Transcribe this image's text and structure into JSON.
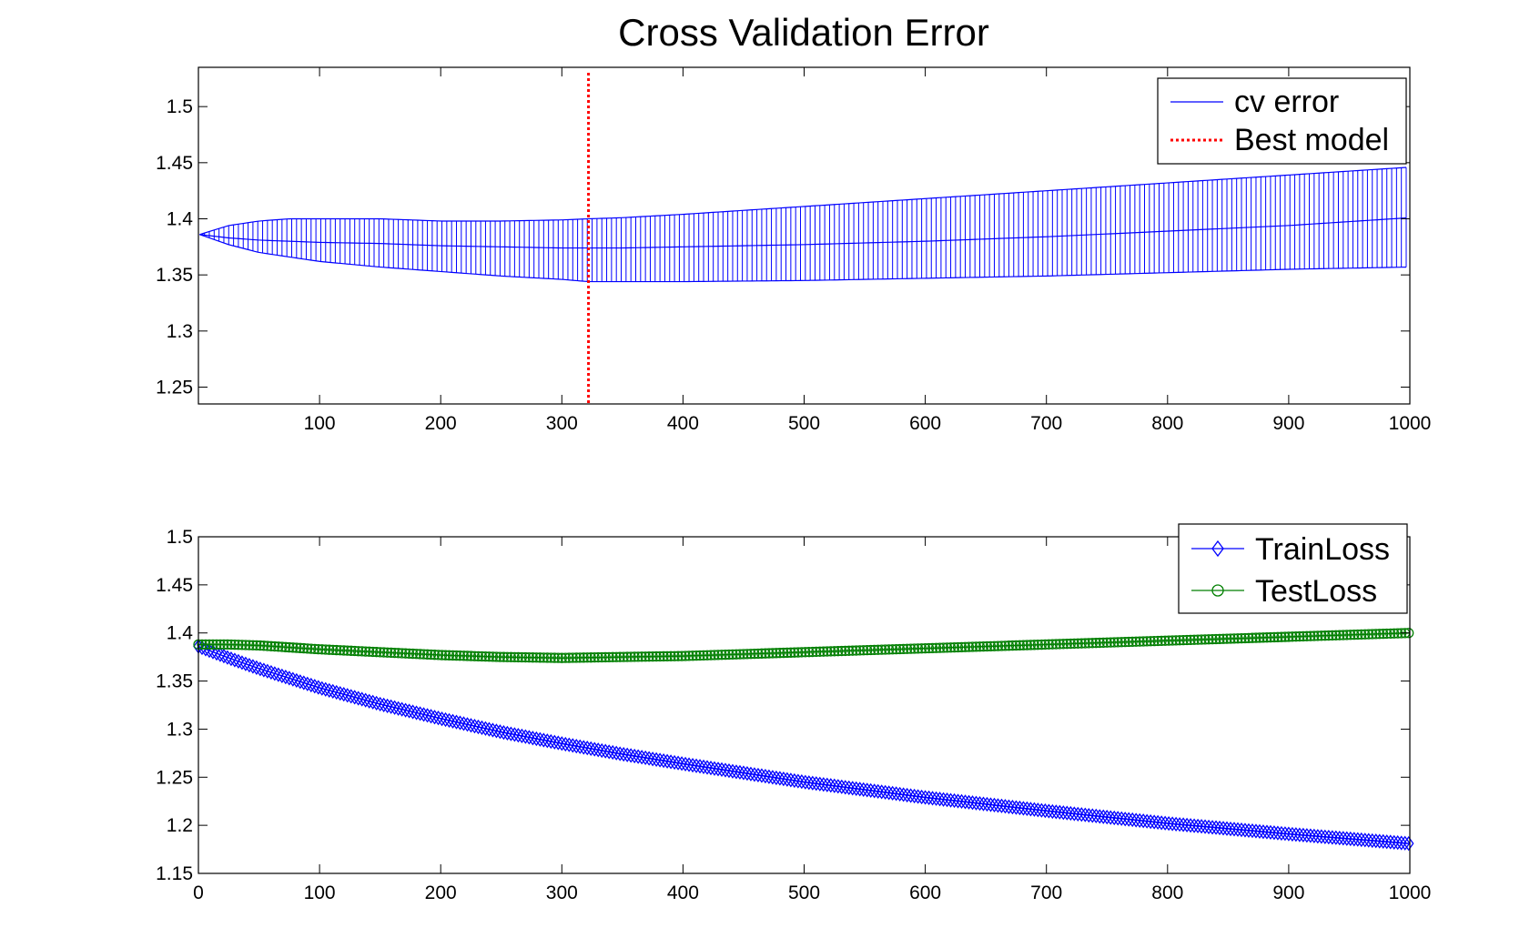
{
  "figure": {
    "title": "Cross Validation Error"
  },
  "chart_data": [
    {
      "type": "line",
      "title": "Cross Validation Error",
      "xlabel": "",
      "ylabel": "",
      "xlim": [
        0,
        1000
      ],
      "ylim": [
        1.235,
        1.535
      ],
      "xticks": [
        100,
        200,
        300,
        400,
        500,
        600,
        700,
        800,
        900,
        1000
      ],
      "yticks": [
        1.25,
        1.3,
        1.35,
        1.4,
        1.45,
        1.5
      ],
      "grid": false,
      "legend_position": "top-right",
      "series": [
        {
          "name": "cv error",
          "style": "errorbar",
          "color": "#0000ff",
          "x": [
            1,
            25,
            50,
            75,
            100,
            150,
            200,
            250,
            300,
            322,
            350,
            400,
            500,
            600,
            700,
            800,
            900,
            1000
          ],
          "mean": [
            1.386,
            1.383,
            1.381,
            1.38,
            1.379,
            1.378,
            1.376,
            1.375,
            1.374,
            1.374,
            1.374,
            1.375,
            1.377,
            1.38,
            1.384,
            1.389,
            1.394,
            1.401
          ],
          "upper": [
            1.386,
            1.394,
            1.398,
            1.4,
            1.4,
            1.4,
            1.398,
            1.398,
            1.399,
            1.4,
            1.401,
            1.404,
            1.411,
            1.418,
            1.425,
            1.432,
            1.439,
            1.446
          ],
          "lower": [
            1.386,
            1.377,
            1.37,
            1.366,
            1.362,
            1.357,
            1.353,
            1.349,
            1.346,
            1.344,
            1.344,
            1.344,
            1.345,
            1.347,
            1.349,
            1.352,
            1.355,
            1.357
          ]
        },
        {
          "name": "Best model",
          "style": "vline-dotted",
          "color": "#ff0000",
          "x": 322
        }
      ]
    },
    {
      "type": "line",
      "title": "",
      "xlabel": "",
      "ylabel": "",
      "xlim": [
        0,
        1000
      ],
      "ylim": [
        1.15,
        1.5
      ],
      "xticks": [
        0,
        100,
        200,
        300,
        400,
        500,
        600,
        700,
        800,
        900,
        1000
      ],
      "yticks": [
        1.15,
        1.2,
        1.25,
        1.3,
        1.35,
        1.4,
        1.45,
        1.5
      ],
      "grid": false,
      "legend_position": "top-right",
      "series": [
        {
          "name": "TrainLoss",
          "marker": "diamond",
          "color": "#0000ff",
          "x": [
            0,
            25,
            50,
            100,
            150,
            200,
            250,
            300,
            350,
            400,
            500,
            600,
            700,
            800,
            900,
            1000
          ],
          "y": [
            1.386,
            1.374,
            1.363,
            1.343,
            1.326,
            1.311,
            1.297,
            1.285,
            1.274,
            1.264,
            1.245,
            1.229,
            1.215,
            1.202,
            1.191,
            1.181
          ]
        },
        {
          "name": "TestLoss",
          "marker": "circle",
          "color": "#007f00",
          "x": [
            0,
            25,
            50,
            100,
            150,
            200,
            250,
            300,
            350,
            400,
            500,
            600,
            700,
            800,
            900,
            1000
          ],
          "y": [
            1.388,
            1.388,
            1.387,
            1.383,
            1.38,
            1.377,
            1.375,
            1.374,
            1.375,
            1.376,
            1.38,
            1.384,
            1.388,
            1.392,
            1.396,
            1.4
          ]
        }
      ]
    }
  ]
}
